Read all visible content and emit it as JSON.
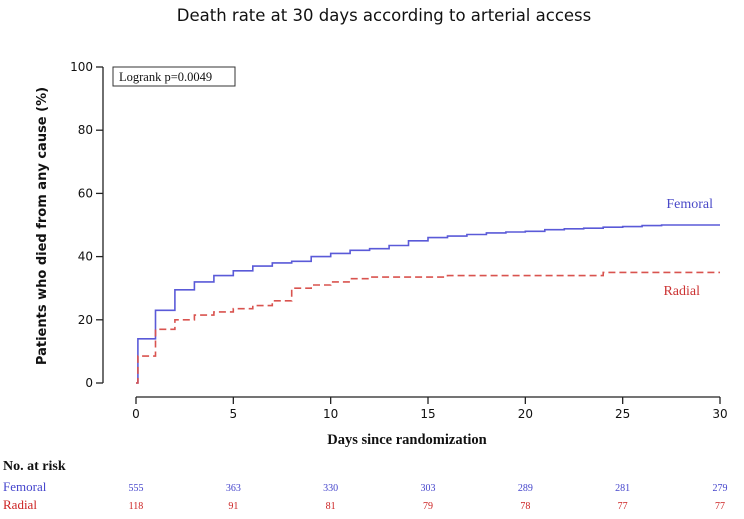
{
  "chart_data": {
    "type": "line",
    "title": "Death rate at 30 days according to arterial access",
    "ylabel": "Patients who died from any cause (%)",
    "xlabel": "Days since randomization",
    "xlim": [
      0,
      30
    ],
    "ylim": [
      0,
      100
    ],
    "xticks": [
      "0",
      "5",
      "10",
      "15",
      "20",
      "25",
      "30"
    ],
    "yticks": [
      "0",
      "20",
      "40",
      "60",
      "80",
      "100"
    ],
    "annotation": "Logrank p=0.0049",
    "series": [
      {
        "name": "Femoral",
        "color": "#5a5ad8",
        "style": "solid",
        "step": true,
        "x": [
          0,
          0.1,
          1,
          2,
          3,
          4,
          5,
          6,
          7,
          8,
          9,
          10,
          11,
          12,
          13,
          14,
          15,
          16,
          17,
          18,
          19,
          20,
          21,
          22,
          23,
          24,
          25,
          26,
          27,
          30
        ],
        "y": [
          0,
          14,
          23,
          29.5,
          32,
          34,
          35.5,
          37,
          38,
          38.5,
          40,
          41,
          42,
          42.5,
          43.5,
          45,
          46,
          46.5,
          47,
          47.5,
          47.8,
          48,
          48.5,
          48.8,
          49,
          49.3,
          49.5,
          49.8,
          50,
          50
        ]
      },
      {
        "name": "Radial",
        "color": "#d9534f",
        "style": "dashed",
        "step": true,
        "x": [
          0,
          0.1,
          1,
          2,
          3,
          4,
          5,
          6,
          7,
          8,
          9,
          10,
          11,
          12,
          16,
          24,
          30
        ],
        "y": [
          0,
          8.5,
          17,
          20,
          21.5,
          22.5,
          23.5,
          24.5,
          26,
          30,
          31,
          32,
          33,
          33.5,
          34,
          35,
          35
        ]
      }
    ],
    "risk_table": {
      "title": "No. at risk",
      "rows": [
        {
          "name": "Femoral",
          "color": "#4444cc",
          "values": [
            "555",
            "363",
            "330",
            "303",
            "289",
            "281",
            "279"
          ]
        },
        {
          "name": "Radial",
          "color": "#cc2222",
          "values": [
            "118",
            "91",
            "81",
            "79",
            "78",
            "77",
            "77"
          ]
        }
      ]
    }
  }
}
